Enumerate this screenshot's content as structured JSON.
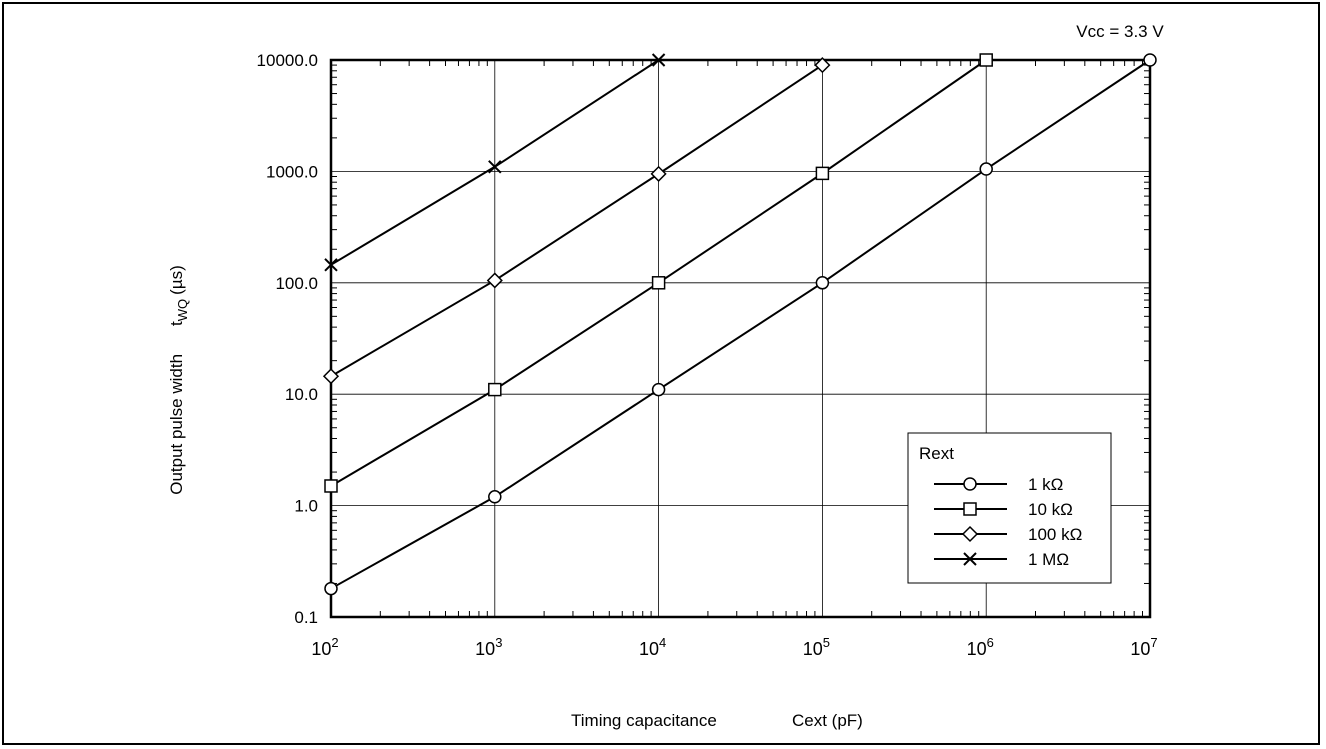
{
  "chart_data": {
    "type": "line",
    "annotation": "Vcc = 3.3 V",
    "xlabel_parts": [
      "Timing capacitance",
      "Cext (pF)"
    ],
    "ylabel": {
      "prefix": "Output pulse width",
      "symbol": "t",
      "subscript": "WQ",
      "unit": "(µs)"
    },
    "x_scale": "log",
    "y_scale": "log",
    "xlim": [
      100,
      10000000
    ],
    "ylim": [
      0.1,
      10000
    ],
    "x_ticks": [
      {
        "base": "10",
        "exp": "2"
      },
      {
        "base": "10",
        "exp": "3"
      },
      {
        "base": "10",
        "exp": "4"
      },
      {
        "base": "10",
        "exp": "5"
      },
      {
        "base": "10",
        "exp": "6"
      },
      {
        "base": "10",
        "exp": "7"
      }
    ],
    "y_ticks": [
      "0.1",
      "1.0",
      "10.0",
      "100.0",
      "1000.0",
      "10000.0"
    ],
    "grid": true,
    "legend": {
      "title": "Rext",
      "position": "bottom-right"
    },
    "series": [
      {
        "name": "1 kΩ",
        "marker": "circle",
        "x": [
          100,
          1000,
          10000,
          100000,
          1000000,
          10000000
        ],
        "y": [
          0.18,
          1.2,
          11,
          100,
          1050,
          10000
        ]
      },
      {
        "name": "10 kΩ",
        "marker": "square",
        "x": [
          100,
          1000,
          10000,
          100000,
          1000000
        ],
        "y": [
          1.5,
          11,
          100,
          960,
          10000
        ]
      },
      {
        "name": "100 kΩ",
        "marker": "diamond",
        "x": [
          100,
          1000,
          10000,
          100000
        ],
        "y": [
          14.5,
          105,
          950,
          9000
        ]
      },
      {
        "name": "1 MΩ",
        "marker": "cross",
        "x": [
          100,
          1000,
          10000
        ],
        "y": [
          145,
          1100,
          10000
        ]
      }
    ]
  }
}
